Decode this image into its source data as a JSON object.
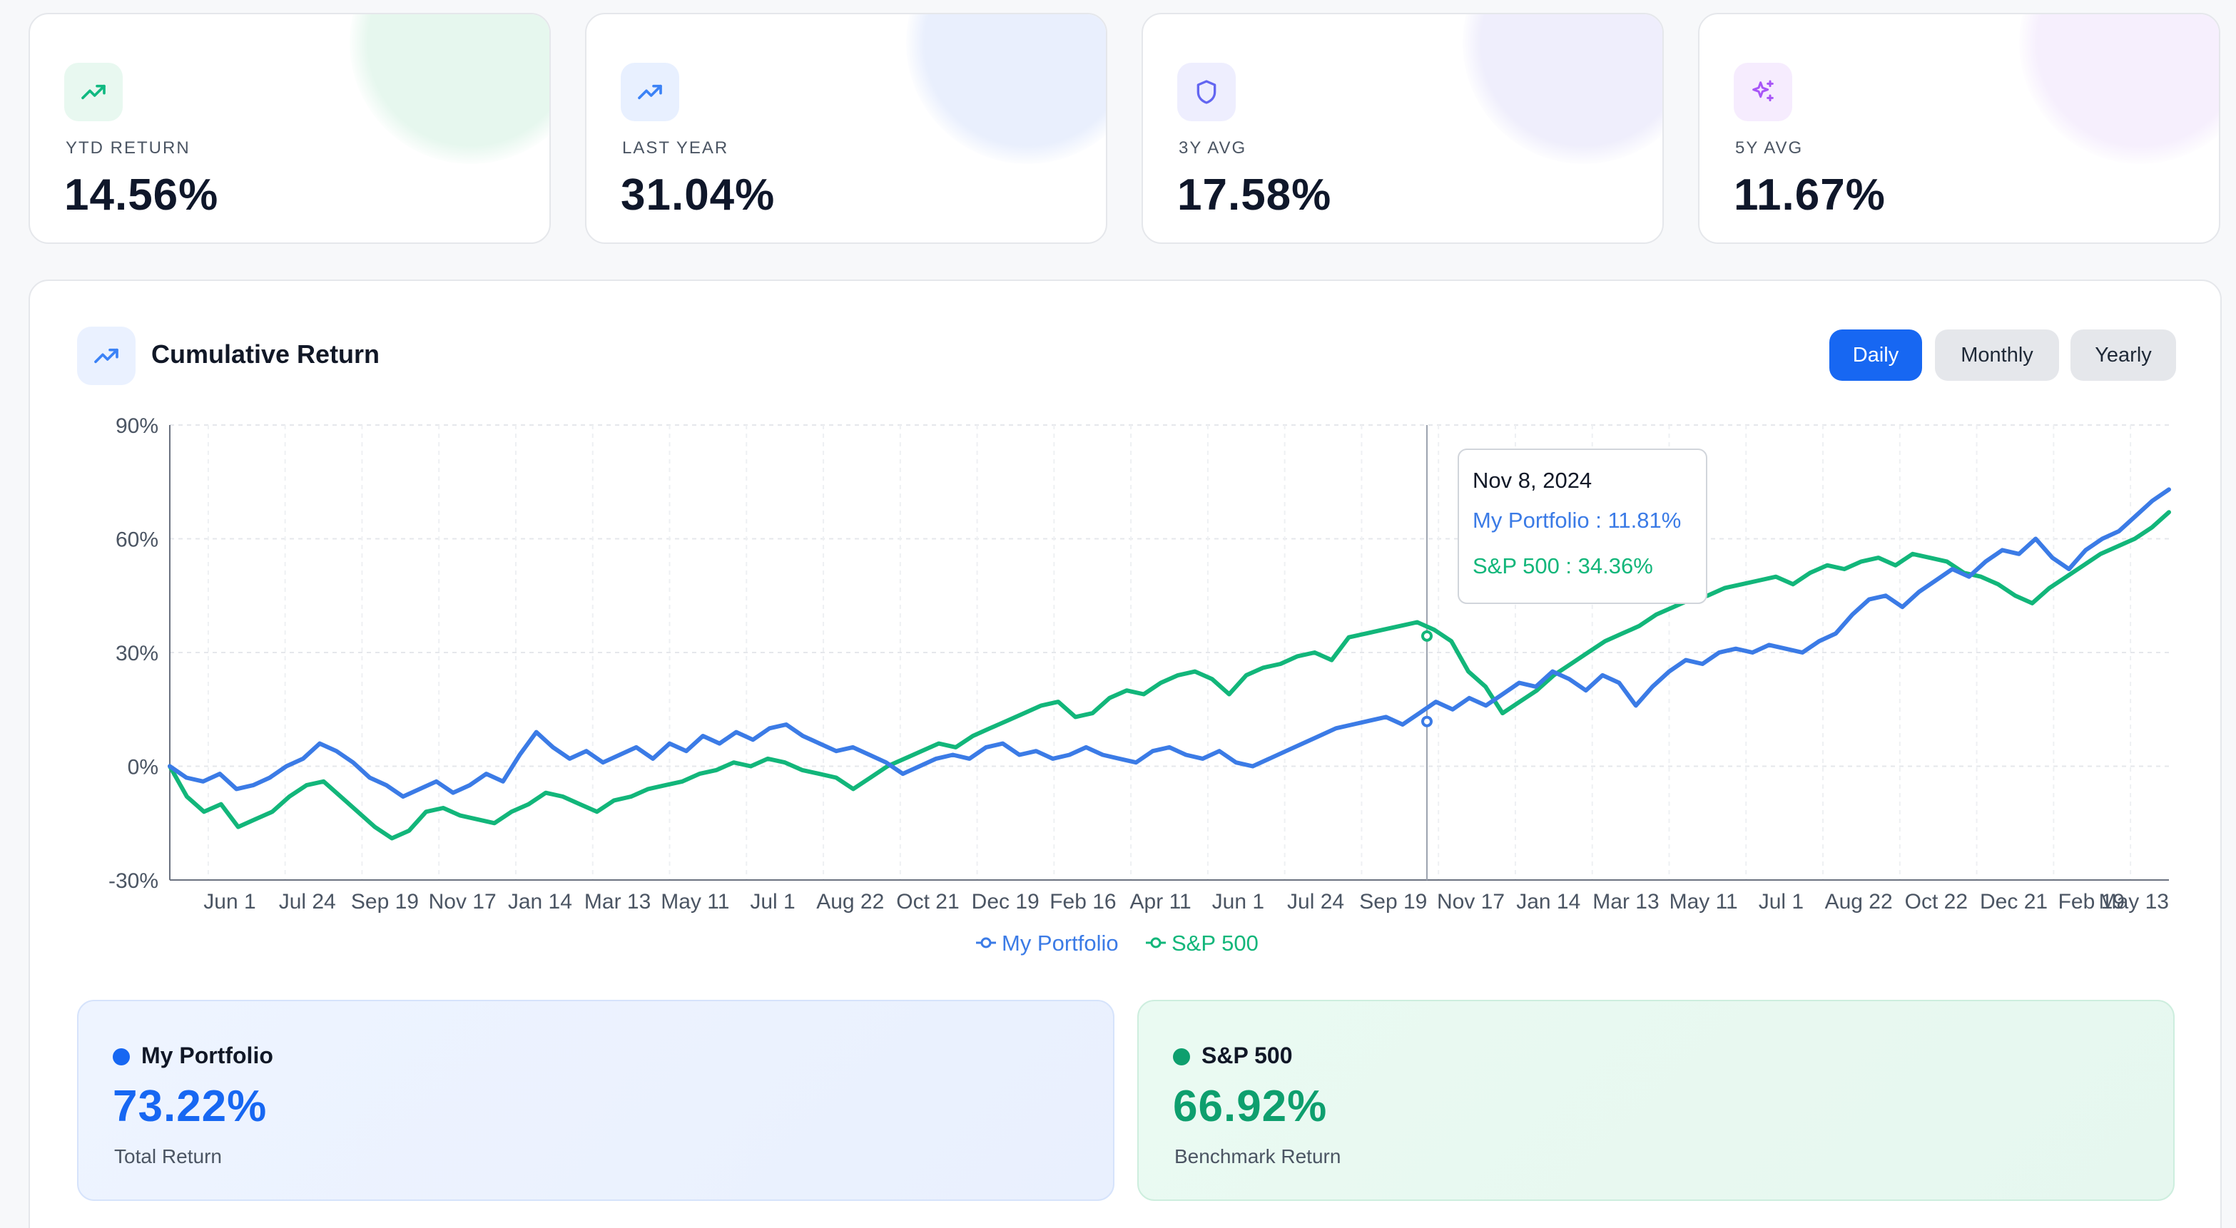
{
  "stats": [
    {
      "label": "YTD RETURN",
      "value": "14.56%",
      "icon": "trending-up-icon",
      "icon_color": "#10b981",
      "icon_bg": "#e8f8f0",
      "glow": "#e6f7ee"
    },
    {
      "label": "LAST YEAR",
      "value": "31.04%",
      "icon": "trending-up-icon",
      "icon_color": "#3b82f6",
      "icon_bg": "#e8f0ff",
      "glow": "#e9effd"
    },
    {
      "label": "3Y AVG",
      "value": "17.58%",
      "icon": "shield-icon",
      "icon_color": "#6366f1",
      "icon_bg": "#eeeefe",
      "glow": "#efeefc"
    },
    {
      "label": "5Y AVG",
      "value": "11.67%",
      "icon": "sparkles-icon",
      "icon_color": "#a855f7",
      "icon_bg": "#f6ecfe",
      "glow": "#f6effd"
    }
  ],
  "panel": {
    "title": "Cumulative Return",
    "title_icon": "trending-up-icon",
    "toggles": [
      {
        "label": "Daily",
        "active": true
      },
      {
        "label": "Monthly",
        "active": false
      },
      {
        "label": "Yearly",
        "active": false
      }
    ]
  },
  "tooltip": {
    "date": "Nov 8, 2024",
    "portfolio_line": "My Portfolio : 11.81%",
    "benchmark_line": "S&P 500 : 34.36%"
  },
  "summary": {
    "portfolio": {
      "name": "My Portfolio",
      "value": "73.22%",
      "caption": "Total Return"
    },
    "benchmark": {
      "name": "S&P 500",
      "value": "66.92%",
      "caption": "Benchmark Return"
    }
  },
  "colors": {
    "portfolio": "#3b7be6",
    "benchmark": "#12b67a",
    "portfolio_strong": "#1767f2",
    "benchmark_strong": "#0e9f6e"
  },
  "chart_data": {
    "type": "line",
    "ylim": [
      -30,
      90
    ],
    "yticks": [
      "-30%",
      "0%",
      "30%",
      "60%",
      "90%"
    ],
    "ytick_values": [
      -30,
      0,
      30,
      60,
      90
    ],
    "xtick_labels": [
      "Jun 1",
      "Jul 24",
      "Sep 19",
      "Nov 17",
      "Jan 14",
      "Mar 13",
      "May 11",
      "Jul 1",
      "Aug 22",
      "Oct 21",
      "Dec 19",
      "Feb 16",
      "Apr 11",
      "Jun 1",
      "Jul 24",
      "Sep 19",
      "Nov 17",
      "Jan 14",
      "Mar 13",
      "May 11",
      "Jul 1",
      "Aug 22",
      "Oct 22",
      "Dec 21",
      "Feb 19",
      "May 13"
    ],
    "grid": true,
    "legend": "bottom-center",
    "series": [
      {
        "name": "My Portfolio",
        "values": [
          0,
          -3,
          -4,
          -2,
          -6,
          -5,
          -3,
          0,
          2,
          6,
          4,
          1,
          -3,
          -5,
          -8,
          -6,
          -4,
          -7,
          -5,
          -2,
          -4,
          3,
          9,
          5,
          2,
          4,
          1,
          3,
          5,
          2,
          6,
          4,
          8,
          6,
          9,
          7,
          10,
          11,
          8,
          6,
          4,
          5,
          3,
          1,
          -2,
          0,
          2,
          3,
          2,
          5,
          6,
          3,
          4,
          2,
          3,
          5,
          3,
          2,
          1,
          4,
          5,
          3,
          2,
          4,
          1,
          0,
          2,
          4,
          6,
          8,
          10,
          11,
          12,
          13,
          11,
          14,
          17,
          15,
          18,
          16,
          19,
          22,
          21,
          25,
          23,
          20,
          24,
          22,
          16,
          21,
          25,
          28,
          27,
          30,
          31,
          30,
          32,
          31,
          30,
          33,
          35,
          40,
          44,
          45,
          42,
          46,
          49,
          52,
          50,
          54,
          57,
          56,
          60,
          55,
          52,
          57,
          60,
          62,
          66,
          70,
          73
        ]
      },
      {
        "name": "S&P 500",
        "values": [
          0,
          -8,
          -12,
          -10,
          -16,
          -14,
          -12,
          -8,
          -5,
          -4,
          -8,
          -12,
          -16,
          -19,
          -17,
          -12,
          -11,
          -13,
          -14,
          -15,
          -12,
          -10,
          -7,
          -8,
          -10,
          -12,
          -9,
          -8,
          -6,
          -5,
          -4,
          -2,
          -1,
          1,
          0,
          2,
          1,
          -1,
          -2,
          -3,
          -6,
          -3,
          0,
          2,
          4,
          6,
          5,
          8,
          10,
          12,
          14,
          16,
          17,
          13,
          14,
          18,
          20,
          19,
          22,
          24,
          25,
          23,
          19,
          24,
          26,
          27,
          29,
          30,
          28,
          34,
          35,
          36,
          37,
          38,
          36,
          33,
          25,
          21,
          14,
          17,
          20,
          24,
          27,
          30,
          33,
          35,
          37,
          40,
          42,
          44,
          45,
          47,
          48,
          49,
          50,
          48,
          51,
          53,
          52,
          54,
          55,
          53,
          56,
          55,
          54,
          51,
          50,
          48,
          45,
          43,
          47,
          50,
          53,
          56,
          58,
          60,
          63,
          67
        ]
      }
    ]
  }
}
